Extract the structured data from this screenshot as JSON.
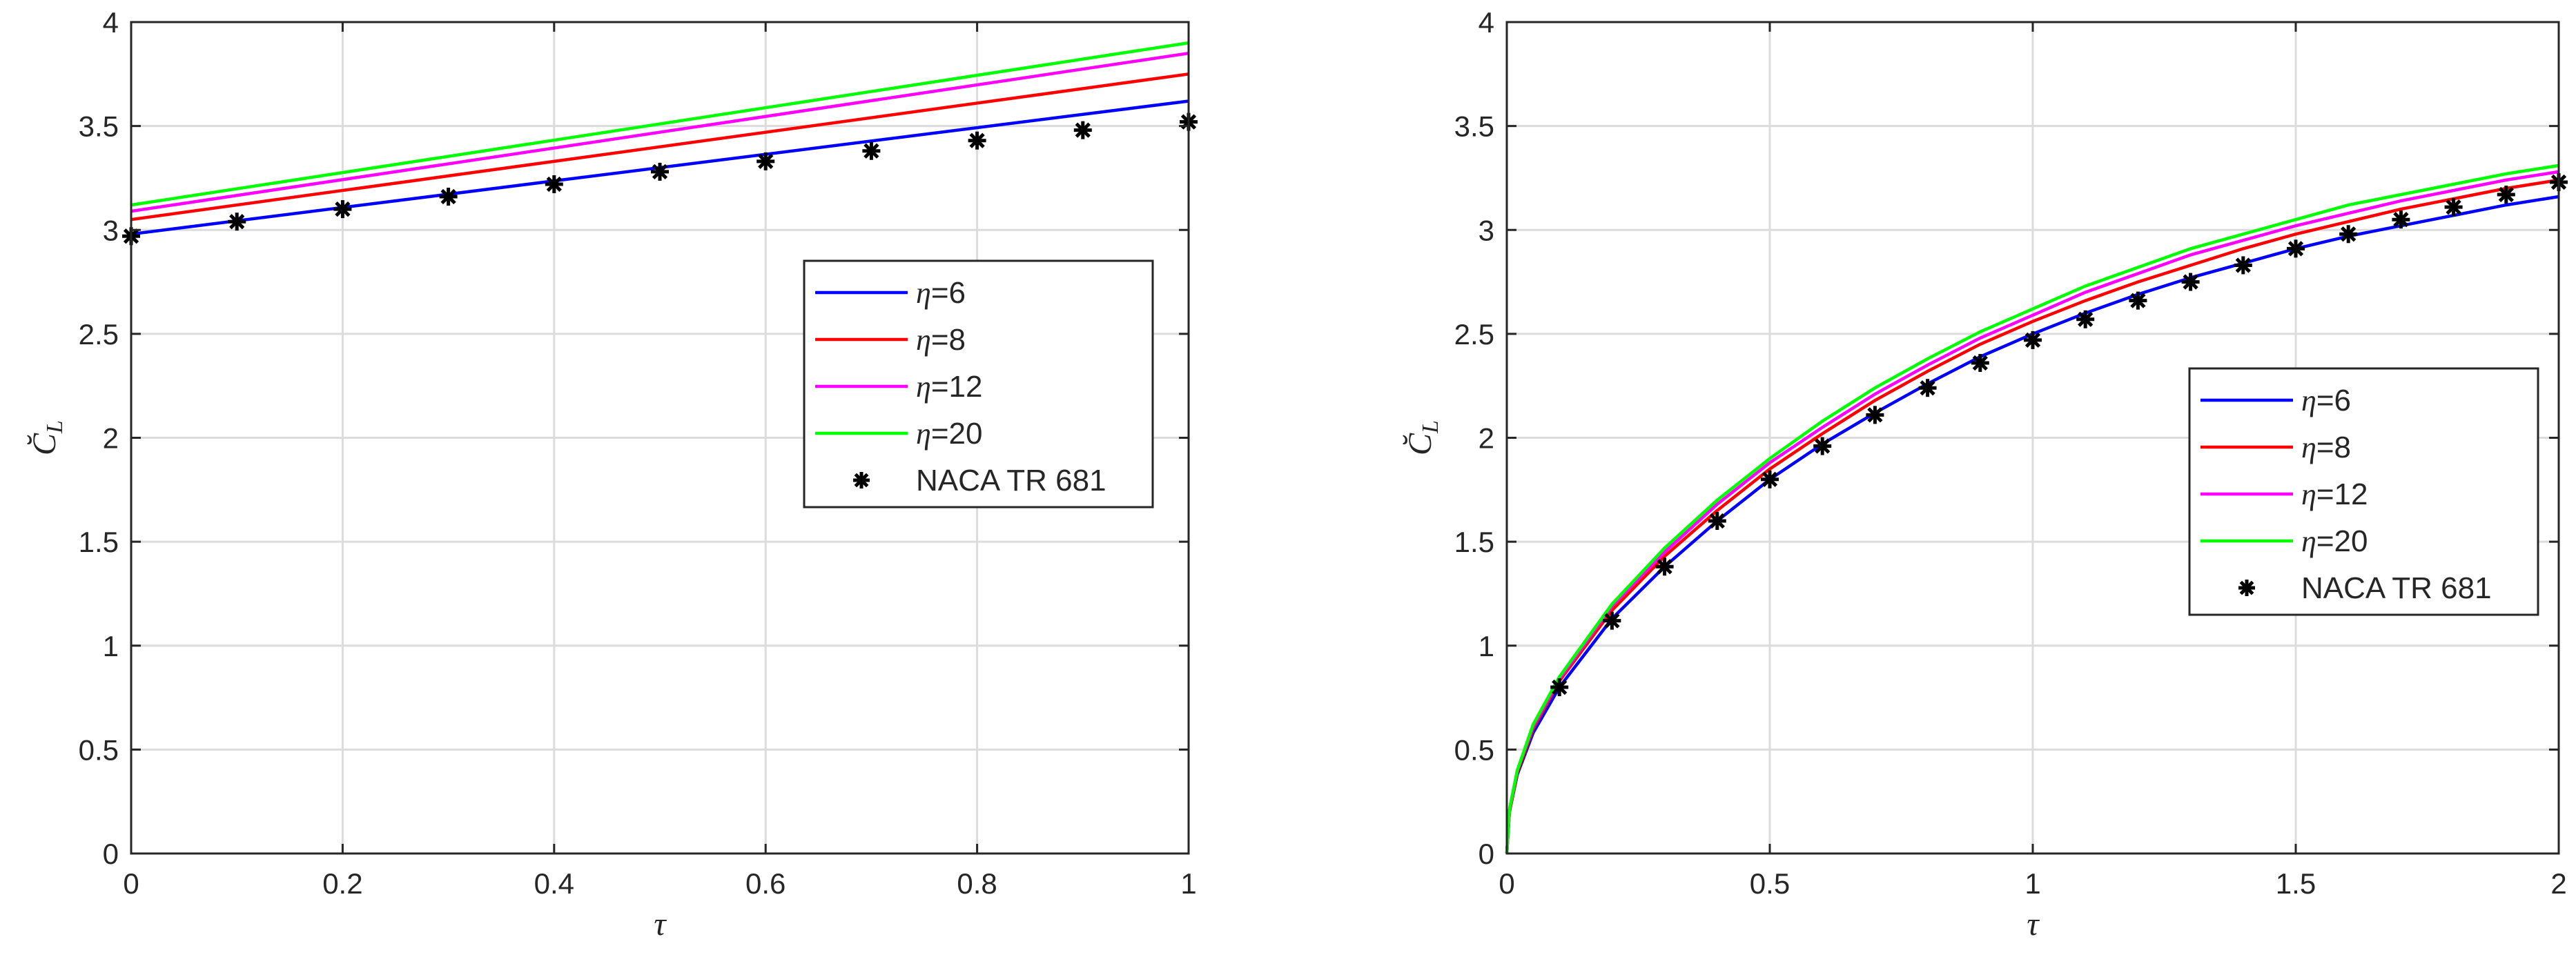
{
  "chart_data": [
    {
      "type": "line",
      "title": "",
      "xlabel": "τ",
      "ylabel": "C̆",
      "ylabel_subscript": "L",
      "xlim": [
        0,
        1
      ],
      "ylim": [
        0,
        4
      ],
      "xticks": [
        0,
        0.2,
        0.4,
        0.6,
        0.8,
        1
      ],
      "xtick_labels": [
        "0",
        "0.2",
        "0.4",
        "0.6",
        "0.8",
        "1"
      ],
      "yticks": [
        0,
        0.5,
        1,
        1.5,
        2,
        2.5,
        3,
        3.5,
        4
      ],
      "ytick_labels": [
        "0",
        "0.5",
        "1",
        "1.5",
        "2",
        "2.5",
        "3",
        "3.5",
        "4"
      ],
      "grid": true,
      "legend_position": "center-right",
      "series": [
        {
          "name": "η=6",
          "eta_label": "η",
          "value_label": "=6",
          "color": "#0000ff",
          "x": [
            0,
            1
          ],
          "y": [
            2.98,
            3.62
          ]
        },
        {
          "name": "η=8",
          "eta_label": "η",
          "value_label": "=8",
          "color": "#ff0000",
          "x": [
            0,
            1
          ],
          "y": [
            3.05,
            3.75
          ]
        },
        {
          "name": "η=12",
          "eta_label": "η",
          "value_label": "=12",
          "color": "#ff00ff",
          "x": [
            0,
            1
          ],
          "y": [
            3.09,
            3.85
          ]
        },
        {
          "name": "η=20",
          "eta_label": "η",
          "value_label": "=20",
          "color": "#00ff00",
          "x": [
            0,
            1
          ],
          "y": [
            3.12,
            3.9
          ]
        }
      ],
      "markers": {
        "name": "NACA TR 681",
        "color": "#000000",
        "x": [
          0,
          0.1,
          0.2,
          0.3,
          0.4,
          0.5,
          0.6,
          0.7,
          0.8,
          0.9,
          1.0
        ],
        "y": [
          2.97,
          3.04,
          3.1,
          3.16,
          3.22,
          3.28,
          3.33,
          3.38,
          3.43,
          3.48,
          3.52
        ]
      }
    },
    {
      "type": "line",
      "title": "",
      "xlabel": "τ",
      "ylabel": "C̆",
      "ylabel_subscript": "L",
      "xlim": [
        0,
        2
      ],
      "ylim": [
        0,
        4
      ],
      "xticks": [
        0,
        0.5,
        1,
        1.5,
        2
      ],
      "xtick_labels": [
        "0",
        "0.5",
        "1",
        "1.5",
        "2"
      ],
      "yticks": [
        0,
        0.5,
        1,
        1.5,
        2,
        2.5,
        3,
        3.5,
        4
      ],
      "ytick_labels": [
        "0",
        "0.5",
        "1",
        "1.5",
        "2",
        "2.5",
        "3",
        "3.5",
        "4"
      ],
      "grid": true,
      "legend_position": "right",
      "series": [
        {
          "name": "η=6",
          "eta_label": "η",
          "value_label": "=6",
          "color": "#0000ff",
          "x": [
            0,
            0.005,
            0.02,
            0.05,
            0.1,
            0.2,
            0.3,
            0.4,
            0.5,
            0.6,
            0.7,
            0.8,
            0.9,
            1.0,
            1.1,
            1.2,
            1.3,
            1.4,
            1.5,
            1.6,
            1.7,
            1.8,
            1.9,
            2.0
          ],
          "y": [
            0,
            0.2,
            0.38,
            0.58,
            0.8,
            1.13,
            1.38,
            1.6,
            1.8,
            1.97,
            2.12,
            2.26,
            2.39,
            2.5,
            2.6,
            2.69,
            2.77,
            2.84,
            2.91,
            2.97,
            3.02,
            3.07,
            3.12,
            3.16
          ]
        },
        {
          "name": "η=8",
          "eta_label": "η",
          "value_label": "=8",
          "color": "#ff0000",
          "x": [
            0,
            0.005,
            0.02,
            0.05,
            0.1,
            0.2,
            0.3,
            0.4,
            0.5,
            0.6,
            0.7,
            0.8,
            0.9,
            1.0,
            1.1,
            1.2,
            1.3,
            1.4,
            1.5,
            1.6,
            1.7,
            1.8,
            1.9,
            2.0
          ],
          "y": [
            0,
            0.2,
            0.39,
            0.6,
            0.83,
            1.17,
            1.43,
            1.65,
            1.85,
            2.02,
            2.18,
            2.32,
            2.45,
            2.56,
            2.66,
            2.75,
            2.83,
            2.91,
            2.98,
            3.04,
            3.1,
            3.15,
            3.2,
            3.24
          ]
        },
        {
          "name": "η=12",
          "eta_label": "η",
          "value_label": "=12",
          "color": "#ff00ff",
          "x": [
            0,
            0.005,
            0.02,
            0.05,
            0.1,
            0.2,
            0.3,
            0.4,
            0.5,
            0.6,
            0.7,
            0.8,
            0.9,
            1.0,
            1.1,
            1.2,
            1.3,
            1.4,
            1.5,
            1.6,
            1.7,
            1.8,
            1.9,
            2.0
          ],
          "y": [
            0,
            0.21,
            0.4,
            0.61,
            0.84,
            1.19,
            1.45,
            1.68,
            1.88,
            2.05,
            2.21,
            2.35,
            2.48,
            2.59,
            2.7,
            2.79,
            2.88,
            2.95,
            3.02,
            3.08,
            3.14,
            3.19,
            3.24,
            3.28
          ]
        },
        {
          "name": "η=20",
          "eta_label": "η",
          "value_label": "=20",
          "color": "#00ff00",
          "x": [
            0,
            0.005,
            0.02,
            0.05,
            0.1,
            0.2,
            0.3,
            0.4,
            0.5,
            0.6,
            0.7,
            0.8,
            0.9,
            1.0,
            1.1,
            1.2,
            1.3,
            1.4,
            1.5,
            1.6,
            1.7,
            1.8,
            1.9,
            2.0
          ],
          "y": [
            0,
            0.21,
            0.4,
            0.62,
            0.85,
            1.2,
            1.47,
            1.7,
            1.9,
            2.08,
            2.24,
            2.38,
            2.51,
            2.62,
            2.73,
            2.82,
            2.91,
            2.98,
            3.05,
            3.12,
            3.17,
            3.22,
            3.27,
            3.31
          ]
        }
      ],
      "markers": {
        "name": "NACA TR 681",
        "color": "#000000",
        "x": [
          0.1,
          0.2,
          0.3,
          0.4,
          0.5,
          0.6,
          0.7,
          0.8,
          0.9,
          1.0,
          1.1,
          1.2,
          1.3,
          1.4,
          1.5,
          1.6,
          1.7,
          1.8,
          1.9,
          2.0
        ],
        "y": [
          0.8,
          1.12,
          1.38,
          1.6,
          1.8,
          1.96,
          2.11,
          2.24,
          2.36,
          2.47,
          2.57,
          2.66,
          2.75,
          2.83,
          2.91,
          2.98,
          3.05,
          3.11,
          3.17,
          3.23
        ]
      }
    }
  ]
}
